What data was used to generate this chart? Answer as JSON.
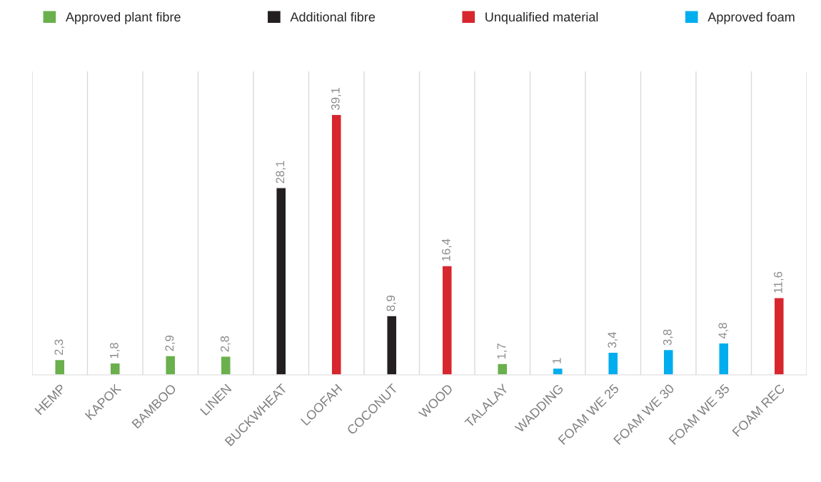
{
  "chart_data": {
    "type": "bar",
    "data_labels": false,
    "grid": "x",
    "legend": "top",
    "categories": [
      "HEMP",
      "KAPOK",
      "BAMBOO",
      "LINEN",
      "BUCKWHEAT",
      "LOOFAH",
      "COCONUT",
      "WOOD",
      "TALALAY",
      "WADDING",
      "FOAM WE 25",
      "FOAM WE 30",
      "FOAM WE 35",
      "FOAM REC"
    ],
    "series": [
      {
        "name": "Approved plant fibre",
        "color": "#6ab04c",
        "values": [
          2.3,
          1.8,
          2.9,
          2.8,
          null,
          null,
          null,
          null,
          1.7,
          null,
          null,
          null,
          null,
          null
        ],
        "value_labels": [
          "2,3",
          "1,8",
          "2,9",
          "2,8",
          null,
          null,
          null,
          null,
          "1,7",
          null,
          null,
          null,
          null,
          null
        ]
      },
      {
        "name": "Additional fibre",
        "color": "#231f20",
        "values": [
          null,
          null,
          null,
          null,
          28.1,
          null,
          8.9,
          null,
          null,
          null,
          null,
          null,
          null,
          null
        ],
        "value_labels": [
          null,
          null,
          null,
          null,
          "28,1",
          null,
          "8,9",
          null,
          null,
          null,
          null,
          null,
          null,
          null
        ]
      },
      {
        "name": "Unqualified material",
        "color": "#d7262e",
        "values": [
          null,
          null,
          null,
          null,
          null,
          39.1,
          null,
          16.4,
          null,
          null,
          null,
          null,
          null,
          11.6
        ],
        "value_labels": [
          null,
          null,
          null,
          null,
          null,
          "39,1",
          null,
          "16,4",
          null,
          null,
          null,
          null,
          null,
          "11,6"
        ]
      },
      {
        "name": "Approved foam",
        "color": "#00adee",
        "values": [
          null,
          null,
          null,
          null,
          null,
          null,
          null,
          null,
          null,
          1,
          3.4,
          3.8,
          4.8,
          null
        ],
        "value_labels": [
          null,
          null,
          null,
          null,
          null,
          null,
          null,
          null,
          null,
          "1",
          "3,4",
          "3,8",
          "4,8",
          null
        ]
      }
    ]
  }
}
